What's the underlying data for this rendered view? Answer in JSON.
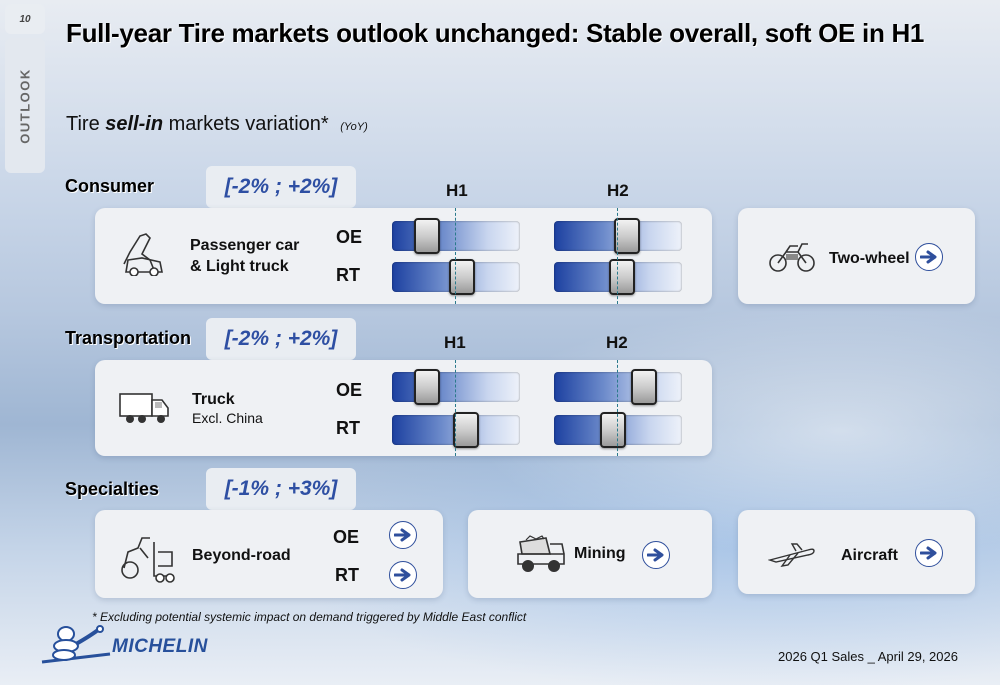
{
  "page_number": "10",
  "side_tab": "OUTLOOK",
  "title": "Full-year Tire markets outlook unchanged: Stable overall, soft OE in H1",
  "subtitle": {
    "prefix": "Tire",
    "italic": "sell-in",
    "suffix": "markets variation*",
    "note": "(YoY)"
  },
  "colors": {
    "accent": "#2e4fa3",
    "bar_dark": "#1c40a0",
    "brand": "#27509b"
  },
  "sections": {
    "consumer": {
      "label": "Consumer",
      "range": "[-2% ; +2%]",
      "h1": "H1",
      "h2": "H2",
      "segment_line1": "Passenger car",
      "segment_line2": "& Light truck",
      "segment_icon": "passenger-car-icon",
      "oe": "OE",
      "rt": "RT",
      "slider_levels": {
        "oe_h1": 0.27,
        "rt_h1": 0.55,
        "oe_h2": 0.57,
        "rt_h2": 0.53
      },
      "side_card": {
        "label": "Two-wheel",
        "icon": "motorcycle-icon"
      }
    },
    "transportation": {
      "label": "Transportation",
      "range": "[-2% ; +2%]",
      "h1": "H1",
      "h2": "H2",
      "segment_line1": "Truck",
      "segment_line2": "Excl. China",
      "segment_icon": "truck-icon",
      "oe": "OE",
      "rt": "RT",
      "slider_levels": {
        "oe_h1": 0.27,
        "rt_h1": 0.58,
        "oe_h2": 0.7,
        "rt_h2": 0.46
      }
    },
    "specialties": {
      "label": "Specialties",
      "range": "[-1% ; +3%]",
      "beyond_road": {
        "label": "Beyond-road",
        "oe": "OE",
        "rt": "RT",
        "icon": "forklift-icon"
      },
      "mining": {
        "label": "Mining",
        "icon": "mining-truck-icon"
      },
      "aircraft": {
        "label": "Aircraft",
        "icon": "airplane-icon"
      }
    }
  },
  "footnote": "* Excluding potential systemic impact on demand triggered by  Middle East conflict",
  "logo": "MICHELIN",
  "footer": "2026 Q1 Sales _ April 29, 2026"
}
